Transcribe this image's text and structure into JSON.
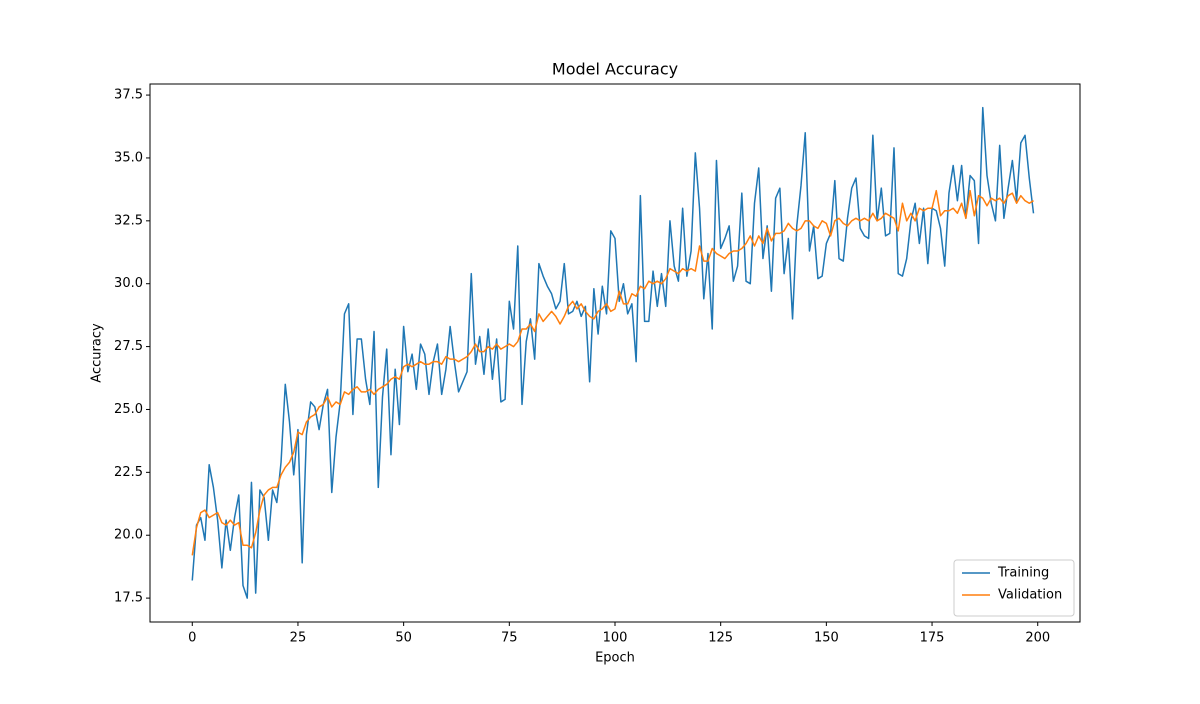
{
  "chart_data": {
    "type": "line",
    "title": "Model Accuracy",
    "xlabel": "Epoch",
    "ylabel": "Accuracy",
    "x": [
      0,
      1,
      2,
      3,
      4,
      5,
      6,
      7,
      8,
      9,
      10,
      11,
      12,
      13,
      14,
      15,
      16,
      17,
      18,
      19,
      20,
      21,
      22,
      23,
      24,
      25,
      26,
      27,
      28,
      29,
      30,
      31,
      32,
      33,
      34,
      35,
      36,
      37,
      38,
      39,
      40,
      41,
      42,
      43,
      44,
      45,
      46,
      47,
      48,
      49,
      50,
      51,
      52,
      53,
      54,
      55,
      56,
      57,
      58,
      59,
      60,
      61,
      62,
      63,
      64,
      65,
      66,
      67,
      68,
      69,
      70,
      71,
      72,
      73,
      74,
      75,
      76,
      77,
      78,
      79,
      80,
      81,
      82,
      83,
      84,
      85,
      86,
      87,
      88,
      89,
      90,
      91,
      92,
      93,
      94,
      95,
      96,
      97,
      98,
      99,
      100,
      101,
      102,
      103,
      104,
      105,
      106,
      107,
      108,
      109,
      110,
      111,
      112,
      113,
      114,
      115,
      116,
      117,
      118,
      119,
      120,
      121,
      122,
      123,
      124,
      125,
      126,
      127,
      128,
      129,
      130,
      131,
      132,
      133,
      134,
      135,
      136,
      137,
      138,
      139,
      140,
      141,
      142,
      143,
      144,
      145,
      146,
      147,
      148,
      149,
      150,
      151,
      152,
      153,
      154,
      155,
      156,
      157,
      158,
      159,
      160,
      161,
      162,
      163,
      164,
      165,
      166,
      167,
      168,
      169,
      170,
      171,
      172,
      173,
      174,
      175,
      176,
      177,
      178,
      179,
      180,
      181,
      182,
      183,
      184,
      185,
      186,
      187,
      188,
      189,
      190,
      191,
      192,
      193,
      194,
      195,
      196,
      197,
      198,
      199
    ],
    "series": [
      {
        "name": "Training",
        "color": "#1f77b4",
        "values": [
          18.2,
          20.4,
          20.7,
          19.8,
          22.8,
          21.9,
          20.6,
          18.7,
          20.6,
          19.4,
          20.7,
          21.6,
          18.0,
          17.5,
          22.1,
          17.7,
          21.8,
          21.5,
          19.8,
          21.8,
          21.3,
          22.9,
          26.0,
          24.5,
          22.4,
          24.2,
          18.9,
          24.0,
          25.3,
          25.1,
          24.2,
          25.2,
          25.8,
          21.7,
          23.9,
          25.3,
          28.8,
          29.2,
          24.8,
          27.8,
          27.8,
          26.2,
          25.2,
          28.1,
          21.9,
          25.5,
          27.4,
          23.2,
          26.6,
          24.4,
          28.3,
          26.5,
          27.2,
          25.8,
          27.6,
          27.2,
          25.6,
          26.9,
          27.6,
          25.6,
          26.6,
          28.3,
          26.9,
          25.7,
          26.1,
          26.5,
          30.4,
          26.8,
          27.9,
          26.4,
          28.2,
          26.2,
          27.8,
          25.3,
          25.4,
          29.3,
          28.2,
          31.5,
          25.2,
          27.7,
          28.6,
          27.0,
          30.8,
          30.3,
          29.9,
          29.6,
          29.0,
          29.3,
          30.8,
          28.8,
          28.9,
          29.3,
          28.7,
          29.1,
          26.1,
          29.8,
          28.0,
          29.9,
          28.8,
          32.1,
          31.8,
          29.3,
          30.0,
          28.8,
          29.2,
          26.9,
          33.5,
          28.5,
          28.5,
          30.5,
          29.1,
          30.4,
          29.1,
          32.5,
          30.7,
          30.1,
          33.0,
          30.3,
          31.3,
          35.2,
          33.0,
          29.4,
          31.2,
          28.2,
          34.9,
          31.4,
          31.8,
          32.3,
          30.1,
          30.7,
          33.6,
          30.1,
          30.0,
          33.2,
          34.6,
          31.0,
          32.3,
          29.7,
          33.4,
          33.8,
          30.4,
          31.8,
          28.6,
          32.3,
          33.9,
          36.0,
          31.3,
          32.3,
          30.2,
          30.3,
          31.6,
          32.0,
          34.1,
          31.0,
          30.9,
          32.6,
          33.8,
          34.2,
          32.2,
          31.9,
          31.8,
          35.9,
          32.5,
          33.8,
          31.9,
          32.0,
          35.4,
          30.4,
          30.3,
          31.0,
          32.5,
          33.2,
          31.6,
          33.0,
          30.8,
          33.0,
          32.9,
          32.2,
          30.7,
          33.6,
          34.7,
          33.3,
          34.7,
          32.6,
          34.3,
          34.1,
          31.6,
          37.0,
          34.3,
          33.2,
          32.5,
          35.5,
          32.6,
          33.8,
          34.9,
          33.3,
          35.6,
          35.9,
          34.2,
          32.8
        ]
      },
      {
        "name": "Validation",
        "color": "#ff7f0e",
        "values": [
          19.2,
          20.3,
          20.9,
          21.0,
          20.7,
          20.8,
          20.9,
          20.5,
          20.4,
          20.6,
          20.4,
          20.5,
          19.6,
          19.6,
          19.5,
          20.1,
          21.0,
          21.6,
          21.8,
          21.9,
          21.9,
          22.4,
          22.7,
          22.9,
          23.3,
          24.1,
          24.0,
          24.5,
          24.7,
          24.8,
          25.1,
          25.2,
          25.5,
          25.1,
          25.3,
          25.2,
          25.7,
          25.6,
          25.8,
          25.9,
          25.7,
          25.7,
          25.8,
          25.6,
          25.8,
          25.9,
          26.0,
          26.2,
          26.3,
          26.2,
          26.7,
          26.8,
          26.7,
          26.8,
          26.9,
          26.8,
          26.8,
          26.9,
          26.9,
          26.8,
          27.1,
          27.0,
          27.0,
          26.9,
          27.0,
          27.1,
          27.3,
          27.6,
          27.3,
          27.3,
          27.5,
          27.4,
          27.6,
          27.4,
          27.5,
          27.6,
          27.5,
          27.7,
          28.2,
          28.2,
          28.4,
          28.1,
          28.8,
          28.5,
          28.7,
          28.9,
          28.7,
          28.4,
          28.7,
          29.1,
          29.3,
          29.0,
          29.2,
          28.9,
          28.7,
          28.6,
          28.9,
          29.0,
          29.2,
          28.9,
          29.0,
          29.7,
          29.2,
          29.2,
          29.6,
          29.5,
          29.9,
          29.8,
          30.1,
          30.0,
          30.1,
          30.0,
          30.2,
          30.6,
          30.5,
          30.4,
          30.6,
          30.5,
          30.6,
          30.5,
          31.5,
          30.9,
          30.9,
          31.4,
          31.2,
          31.1,
          31.0,
          31.2,
          31.3,
          31.3,
          31.4,
          31.6,
          31.9,
          31.5,
          31.9,
          31.6,
          32.2,
          31.7,
          32.0,
          32.0,
          32.1,
          32.4,
          32.2,
          32.1,
          32.2,
          32.5,
          32.5,
          32.3,
          32.2,
          32.5,
          32.4,
          31.9,
          32.5,
          32.6,
          32.4,
          32.3,
          32.5,
          32.6,
          32.5,
          32.6,
          32.5,
          32.8,
          32.5,
          32.6,
          32.8,
          32.7,
          32.6,
          32.1,
          33.2,
          32.5,
          32.8,
          32.5,
          33.0,
          32.9,
          33.0,
          33.0,
          33.7,
          32.7,
          32.9,
          32.9,
          33.0,
          32.8,
          33.2,
          32.6,
          33.7,
          32.7,
          33.5,
          33.4,
          33.1,
          33.4,
          33.3,
          33.4,
          33.2,
          33.5,
          33.6,
          33.2,
          33.5,
          33.3,
          33.2,
          33.3
        ]
      }
    ],
    "xlim": [
      -10,
      210
    ],
    "ylim": [
      16.55,
      37.94
    ],
    "xticks": [
      0,
      25,
      50,
      75,
      100,
      125,
      150,
      175,
      200
    ],
    "yticks": [
      17.5,
      {
        "value": 20,
        "label": "20.0"
      },
      22.5,
      {
        "value": 25,
        "label": "25.0"
      },
      27.5,
      {
        "value": 30,
        "label": "30.0"
      },
      32.5,
      {
        "value": 35,
        "label": "35.0"
      },
      37.5
    ],
    "legend": "lower right",
    "grid": false
  }
}
